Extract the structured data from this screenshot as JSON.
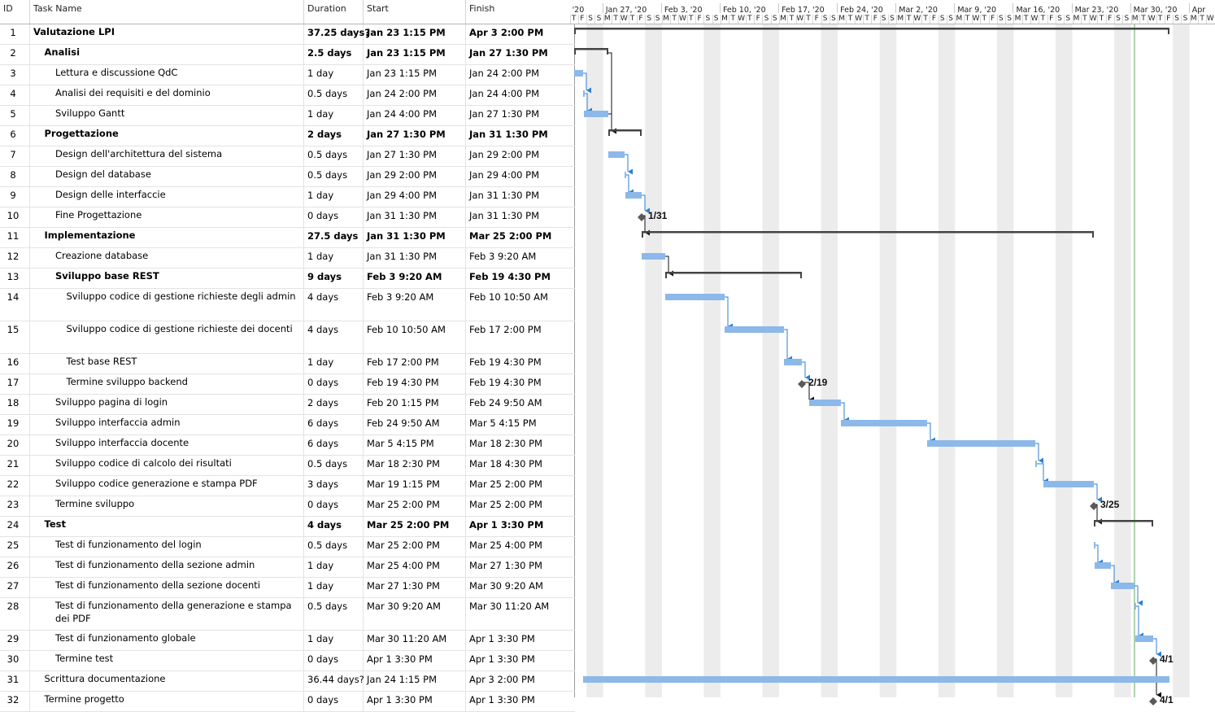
{
  "columns": {
    "id": "ID",
    "name": "Task Name",
    "duration": "Duration",
    "start": "Start",
    "finish": "Finish"
  },
  "timeline": {
    "weeks": [
      "'20",
      "Jan 27, '20",
      "Feb 3, '20",
      "Feb 10, '20",
      "Feb 17, '20",
      "Feb 24, '20",
      "Mar 2, '20",
      "Mar 9, '20",
      "Mar 16, '20",
      "Mar 23, '20",
      "Mar 30, '20",
      "Apr"
    ],
    "lead_days": [
      "T",
      "F",
      "S",
      "S"
    ],
    "week_days": [
      "M",
      "T",
      "W",
      "T",
      "F",
      "S",
      "S"
    ]
  },
  "colors": {
    "task_bar": "#8cb8ea",
    "summary_bar": "#444444",
    "milestone": "#595959",
    "link": "#2c7fd1",
    "weekend": "#ececec",
    "status_line": "#5aaa5a"
  },
  "tasks": [
    {
      "id": "1",
      "name": "Valutazione LPI",
      "duration": "37.25 days?",
      "start": "Jan 23 1:15 PM",
      "finish": "Apr 3 2:00 PM",
      "level": 0,
      "summary": true
    },
    {
      "id": "2",
      "name": "Analisi",
      "duration": "2.5 days",
      "start": "Jan 23 1:15 PM",
      "finish": "Jan 27 1:30 PM",
      "level": 1,
      "summary": true
    },
    {
      "id": "3",
      "name": "Lettura e discussione QdC",
      "duration": "1 day",
      "start": "Jan 23 1:15 PM",
      "finish": "Jan 24 2:00 PM",
      "level": 2
    },
    {
      "id": "4",
      "name": "Analisi dei requisiti e del dominio",
      "duration": "0.5 days",
      "start": "Jan 24 2:00 PM",
      "finish": "Jan 24 4:00 PM",
      "level": 2
    },
    {
      "id": "5",
      "name": "Sviluppo Gantt",
      "duration": "1 day",
      "start": "Jan 24 4:00 PM",
      "finish": "Jan 27 1:30 PM",
      "level": 2
    },
    {
      "id": "6",
      "name": "Progettazione",
      "duration": "2 days",
      "start": "Jan 27 1:30 PM",
      "finish": "Jan 31 1:30 PM",
      "level": 1,
      "summary": true
    },
    {
      "id": "7",
      "name": "Design dell'architettura del sistema",
      "duration": "0.5 days",
      "start": "Jan 27 1:30 PM",
      "finish": "Jan 29 2:00 PM",
      "level": 2
    },
    {
      "id": "8",
      "name": "Design del database",
      "duration": "0.5 days",
      "start": "Jan 29 2:00 PM",
      "finish": "Jan 29 4:00 PM",
      "level": 2
    },
    {
      "id": "9",
      "name": "Design delle interfaccie",
      "duration": "1 day",
      "start": "Jan 29 4:00 PM",
      "finish": "Jan 31 1:30 PM",
      "level": 2
    },
    {
      "id": "10",
      "name": "Fine Progettazione",
      "duration": "0 days",
      "start": "Jan 31 1:30 PM",
      "finish": "Jan 31 1:30 PM",
      "level": 2,
      "milestone": "1/31"
    },
    {
      "id": "11",
      "name": "Implementazione",
      "duration": "27.5 days",
      "start": "Jan 31 1:30 PM",
      "finish": "Mar 25 2:00 PM",
      "level": 1,
      "summary": true
    },
    {
      "id": "12",
      "name": "Creazione database",
      "duration": "1 day",
      "start": "Jan 31 1:30 PM",
      "finish": "Feb 3 9:20 AM",
      "level": 2
    },
    {
      "id": "13",
      "name": "Sviluppo base REST",
      "duration": "9 days",
      "start": "Feb 3 9:20 AM",
      "finish": "Feb 19 4:30 PM",
      "level": 2,
      "summary": true
    },
    {
      "id": "14",
      "name": "Sviluppo codice di gestione richieste degli admin",
      "duration": "4 days",
      "start": "Feb 3 9:20 AM",
      "finish": "Feb 10 10:50 AM",
      "level": 3
    },
    {
      "id": "15",
      "name": "Sviluppo codice di gestione richieste dei docenti",
      "duration": "4 days",
      "start": "Feb 10 10:50 AM",
      "finish": "Feb 17 2:00 PM",
      "level": 3
    },
    {
      "id": "16",
      "name": "Test base REST",
      "duration": "1 day",
      "start": "Feb 17 2:00 PM",
      "finish": "Feb 19 4:30 PM",
      "level": 3
    },
    {
      "id": "17",
      "name": "Termine sviluppo backend",
      "duration": "0 days",
      "start": "Feb 19 4:30 PM",
      "finish": "Feb 19 4:30 PM",
      "level": 3,
      "milestone": "2/19"
    },
    {
      "id": "18",
      "name": "Sviluppo pagina di login",
      "duration": "2 days",
      "start": "Feb 20 1:15 PM",
      "finish": "Feb 24 9:50 AM",
      "level": 2
    },
    {
      "id": "19",
      "name": "Sviluppo interfaccia admin",
      "duration": "6 days",
      "start": "Feb 24 9:50 AM",
      "finish": "Mar 5 4:15 PM",
      "level": 2
    },
    {
      "id": "20",
      "name": "Sviluppo interfaccia docente",
      "duration": "6 days",
      "start": "Mar 5 4:15 PM",
      "finish": "Mar 18 2:30 PM",
      "level": 2
    },
    {
      "id": "21",
      "name": "Sviluppo codice di calcolo dei risultati",
      "duration": "0.5 days",
      "start": "Mar 18 2:30 PM",
      "finish": "Mar 18 4:30 PM",
      "level": 2
    },
    {
      "id": "22",
      "name": "Sviluppo codice generazione e stampa PDF",
      "duration": "3 days",
      "start": "Mar 19 1:15 PM",
      "finish": "Mar 25 2:00 PM",
      "level": 2
    },
    {
      "id": "23",
      "name": "Termine sviluppo",
      "duration": "0 days",
      "start": "Mar 25 2:00 PM",
      "finish": "Mar 25 2:00 PM",
      "level": 2,
      "milestone": "3/25"
    },
    {
      "id": "24",
      "name": "Test",
      "duration": "4 days",
      "start": "Mar 25 2:00 PM",
      "finish": "Apr 1 3:30 PM",
      "level": 1,
      "summary": true
    },
    {
      "id": "25",
      "name": "Test di funzionamento del login",
      "duration": "0.5 days",
      "start": "Mar 25 2:00 PM",
      "finish": "Mar 25 4:00 PM",
      "level": 2
    },
    {
      "id": "26",
      "name": "Test di funzionamento della sezione admin",
      "duration": "1 day",
      "start": "Mar 25 4:00 PM",
      "finish": "Mar 27 1:30 PM",
      "level": 2
    },
    {
      "id": "27",
      "name": "Test di funzionamento della sezione docenti",
      "duration": "1 day",
      "start": "Mar 27 1:30 PM",
      "finish": "Mar 30 9:20 AM",
      "level": 2
    },
    {
      "id": "28",
      "name": "Test di funzionamento della generazione e stampa dei PDF",
      "duration": "0.5 days",
      "start": "Mar 30 9:20 AM",
      "finish": "Mar 30 11:20 AM",
      "level": 2
    },
    {
      "id": "29",
      "name": "Test di funzionamento globale",
      "duration": "1 day",
      "start": "Mar 30 11:20 AM",
      "finish": "Apr 1 3:30 PM",
      "level": 2
    },
    {
      "id": "30",
      "name": "Termine test",
      "duration": "0 days",
      "start": "Apr 1 3:30 PM",
      "finish": "Apr 1 3:30 PM",
      "level": 2,
      "milestone": "4/1"
    },
    {
      "id": "31",
      "name": "Scrittura documentazione",
      "duration": "36.44 days?",
      "start": "Jan 24 1:15 PM",
      "finish": "Apr 3 2:00 PM",
      "level": 1
    },
    {
      "id": "32",
      "name": "Termine progetto",
      "duration": "0 days",
      "start": "Apr 1 3:30 PM",
      "finish": "Apr 1 3:30 PM",
      "level": 1,
      "milestone": "4/1"
    }
  ]
}
